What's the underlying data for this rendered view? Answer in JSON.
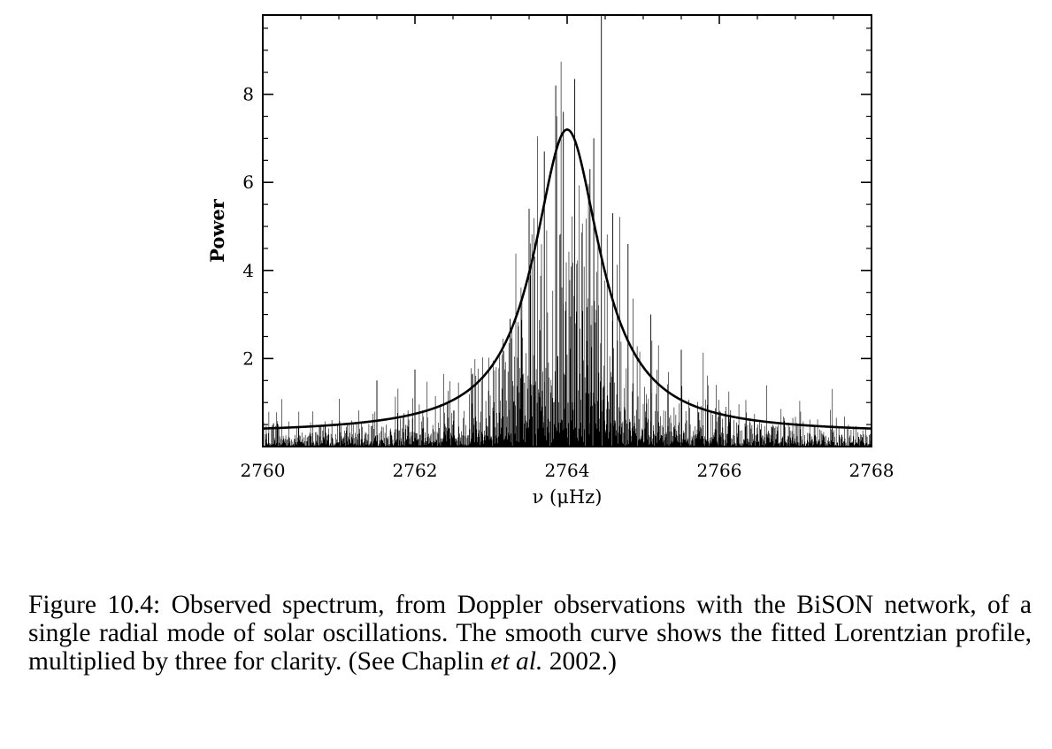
{
  "chart_data": {
    "type": "line",
    "xlabel": "ν (μHz)",
    "ylabel": "Power",
    "xlim": [
      2760,
      2768
    ],
    "ylim": [
      0,
      9.8
    ],
    "x_ticks": [
      2760,
      2762,
      2764,
      2766,
      2768
    ],
    "x_tick_labels": [
      "2760",
      "2762",
      "2764",
      "2766",
      "2768"
    ],
    "y_ticks": [
      2,
      4,
      6,
      8
    ],
    "y_tick_labels": [
      "2",
      "4",
      "6",
      "8"
    ],
    "grid": false,
    "legend": false,
    "series": [
      {
        "kind": "observed spectrum (noisy, many spikes)",
        "style": "thin black spikes",
        "noise_floor": 0.15,
        "prominent_spikes": [
          {
            "x": 2761.5,
            "y": 1.5
          },
          {
            "x": 2762.0,
            "y": 1.75
          },
          {
            "x": 2763.25,
            "y": 2.9
          },
          {
            "x": 2763.5,
            "y": 5.4
          },
          {
            "x": 2763.7,
            "y": 6.7
          },
          {
            "x": 2763.85,
            "y": 8.2
          },
          {
            "x": 2763.95,
            "y": 7.6
          },
          {
            "x": 2764.1,
            "y": 8.35
          },
          {
            "x": 2764.3,
            "y": 6.3
          },
          {
            "x": 2764.35,
            "y": 7.0
          },
          {
            "x": 2764.45,
            "y": 9.8
          },
          {
            "x": 2764.6,
            "y": 5.3
          },
          {
            "x": 2764.8,
            "y": 4.6
          },
          {
            "x": 2765.1,
            "y": 3.0
          },
          {
            "x": 2765.5,
            "y": 2.2
          }
        ]
      },
      {
        "kind": "fitted Lorentzian profile ×3",
        "style": "thick black smooth curve",
        "center": 2764.0,
        "peak": 7.2,
        "half_width": 0.53,
        "offset": 0.29
      }
    ]
  },
  "caption": {
    "part1": "Figure 10.4: Observed spectrum, from Doppler observations with the BiSON network, of a single radial mode of solar oscillations. The smooth curve shows the fitted Lorentzian profile, multiplied by three for clarity. (See Chaplin ",
    "italic1": "et al.",
    "part2": " 2002.)"
  }
}
